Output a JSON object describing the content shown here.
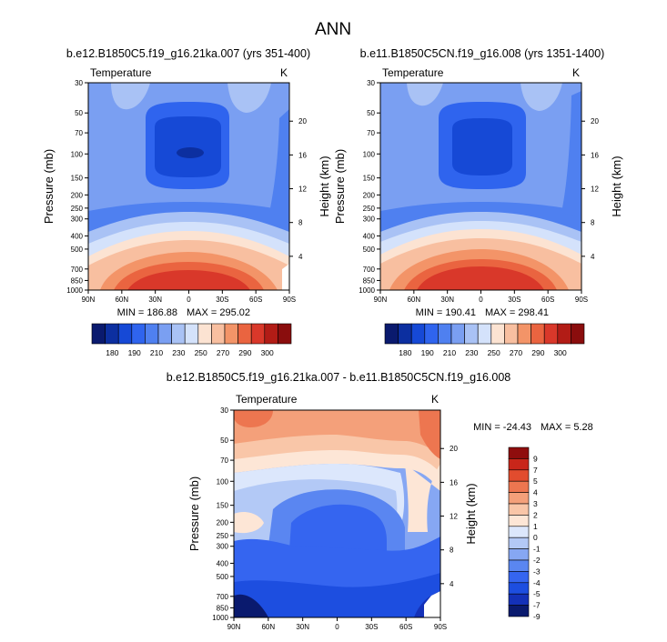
{
  "page": {
    "title": "ANN"
  },
  "colors": {
    "scale_13": [
      "#0a1a6e",
      "#0c2fa0",
      "#1649d6",
      "#2f64ee",
      "#4f80f0",
      "#7a9ff2",
      "#a9c2f5",
      "#d4e2fb",
      "#fce3d2",
      "#f8bfa0",
      "#f39468",
      "#ea6440",
      "#d9382a",
      "#b21c16",
      "#8a0d0d"
    ],
    "scale_diff": [
      "#0a1a6e",
      "#1431b8",
      "#1d4ee0",
      "#3565f0",
      "#5a86f1",
      "#86a7f3",
      "#b3c9f6",
      "#dce7fc",
      "#fde6d6",
      "#f9c6a8",
      "#f4a07a",
      "#ed7650",
      "#e24c2e",
      "#c9261a",
      "#8f0d0d"
    ]
  },
  "chart_data": [
    {
      "type": "heatmap",
      "name": "panel-left",
      "title": "b.e12.B1850C5.f19_g16.21ka.007 (yrs 351-400)",
      "variable": "Temperature",
      "units": "K",
      "xlabel": "",
      "ylabel": "Pressure (mb)",
      "y2label": "Height (km)",
      "xticks": [
        "90N",
        "60N",
        "30N",
        "0",
        "30S",
        "60S",
        "90S"
      ],
      "yticks": [
        30,
        50,
        70,
        100,
        150,
        200,
        250,
        300,
        400,
        500,
        700,
        850,
        1000
      ],
      "y2ticks": [
        20,
        16,
        12,
        8,
        4
      ],
      "min_label": "MIN = 186.88",
      "max_label": "MAX = 295.02",
      "min": 186.88,
      "max": 295.02,
      "colorbar": {
        "orientation": "horizontal",
        "labels": [
          "180",
          "190",
          "210",
          "230",
          "250",
          "270",
          "290",
          "300"
        ]
      }
    },
    {
      "type": "heatmap",
      "name": "panel-right",
      "title": "b.e11.B1850C5CN.f19_g16.008 (yrs 1351-1400)",
      "variable": "Temperature",
      "units": "K",
      "xlabel": "",
      "ylabel": "Pressure (mb)",
      "y2label": "Height (km)",
      "xticks": [
        "90N",
        "60N",
        "30N",
        "0",
        "30S",
        "60S",
        "90S"
      ],
      "yticks": [
        30,
        50,
        70,
        100,
        150,
        200,
        250,
        300,
        400,
        500,
        700,
        850,
        1000
      ],
      "y2ticks": [
        20,
        16,
        12,
        8,
        4
      ],
      "min_label": "MIN = 190.41",
      "max_label": "MAX = 298.41",
      "min": 190.41,
      "max": 298.41,
      "colorbar": {
        "orientation": "horizontal",
        "labels": [
          "180",
          "190",
          "210",
          "230",
          "250",
          "270",
          "290",
          "300"
        ]
      }
    },
    {
      "type": "heatmap",
      "name": "panel-diff",
      "title": "b.e12.B1850C5.f19_g16.21ka.007 - b.e11.B1850C5CN.f19_g16.008",
      "variable": "Temperature",
      "units": "K",
      "xlabel": "",
      "ylabel": "Pressure (mb)",
      "y2label": "Height (km)",
      "xticks": [
        "90N",
        "60N",
        "30N",
        "0",
        "30S",
        "60S",
        "90S"
      ],
      "yticks": [
        30,
        50,
        70,
        100,
        150,
        200,
        250,
        300,
        400,
        500,
        700,
        850,
        1000
      ],
      "y2ticks": [
        20,
        16,
        12,
        8,
        4
      ],
      "min_label": "MIN = -24.43",
      "max_label": "MAX =   5.28",
      "min": -24.43,
      "max": 5.28,
      "colorbar": {
        "orientation": "vertical",
        "labels": [
          "9",
          "7",
          "5",
          "4",
          "3",
          "2",
          "1",
          "0",
          "-1",
          "-2",
          "-3",
          "-4",
          "-5",
          "-7",
          "-9"
        ]
      }
    }
  ]
}
